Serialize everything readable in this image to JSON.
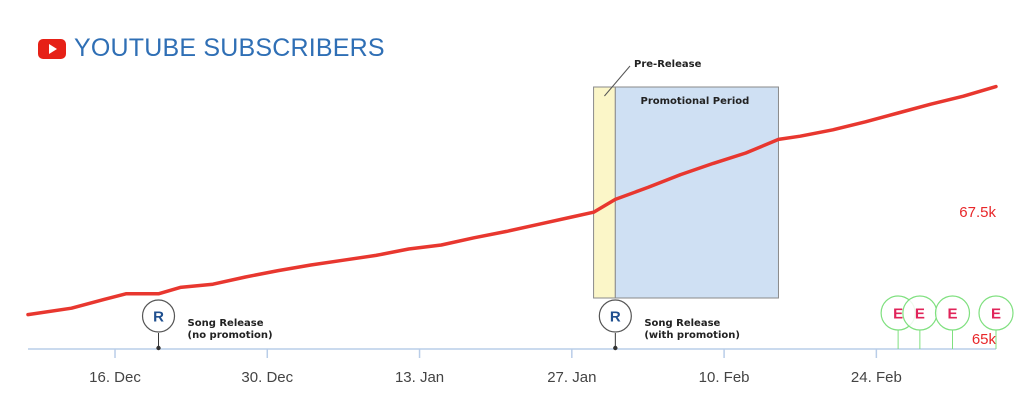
{
  "header": {
    "title": "YOUTUBE SUBSCRIBERS",
    "icon": "youtube-play-icon",
    "icon_color": "#e62117"
  },
  "colors": {
    "line": "#e8372f",
    "axis": "#b9cde8",
    "title": "#2f6fb5",
    "prerelease_fill": "#fbf6c8",
    "promo_fill": "#cfe0f3",
    "event_marker": "#7fe07f",
    "event_letter": "#e0245a",
    "release_letter": "#1f4f8f"
  },
  "chart_data": {
    "type": "line",
    "title": "YOUTUBE SUBSCRIBERS",
    "x_ticks": [
      "16. Dec",
      "30. Dec",
      "13. Jan",
      "27. Jan",
      "10. Feb",
      "24. Feb"
    ],
    "x_range": [
      "2018-12-08",
      "2019-03-07"
    ],
    "y_labels": [
      "67.5k",
      "65k"
    ],
    "ylim": [
      65000,
      68500
    ],
    "grid": false,
    "series": [
      {
        "values": [
          {
            "x": "2018-12-08",
            "y": 65380
          },
          {
            "x": "2018-12-12",
            "y": 65460
          },
          {
            "x": "2018-12-15",
            "y": 65570
          },
          {
            "x": "2018-12-17",
            "y": 65640
          },
          {
            "x": "2018-12-20",
            "y": 65640
          },
          {
            "x": "2018-12-22",
            "y": 65720
          },
          {
            "x": "2018-12-25",
            "y": 65760
          },
          {
            "x": "2018-12-28",
            "y": 65850
          },
          {
            "x": "2018-12-31",
            "y": 65930
          },
          {
            "x": "2019-01-03",
            "y": 66000
          },
          {
            "x": "2019-01-06",
            "y": 66060
          },
          {
            "x": "2019-01-09",
            "y": 66120
          },
          {
            "x": "2019-01-12",
            "y": 66200
          },
          {
            "x": "2019-01-15",
            "y": 66250
          },
          {
            "x": "2019-01-18",
            "y": 66340
          },
          {
            "x": "2019-01-21",
            "y": 66420
          },
          {
            "x": "2019-01-24",
            "y": 66510
          },
          {
            "x": "2019-01-27",
            "y": 66600
          },
          {
            "x": "2019-01-29",
            "y": 66660
          },
          {
            "x": "2019-01-31",
            "y": 66820
          },
          {
            "x": "2019-02-03",
            "y": 66970
          },
          {
            "x": "2019-02-06",
            "y": 67130
          },
          {
            "x": "2019-02-09",
            "y": 67270
          },
          {
            "x": "2019-02-12",
            "y": 67400
          },
          {
            "x": "2019-02-15",
            "y": 67570
          },
          {
            "x": "2019-02-17",
            "y": 67610
          },
          {
            "x": "2019-02-20",
            "y": 67690
          },
          {
            "x": "2019-02-23",
            "y": 67790
          },
          {
            "x": "2019-02-26",
            "y": 67900
          },
          {
            "x": "2019-03-01",
            "y": 68010
          },
          {
            "x": "2019-03-04",
            "y": 68110
          },
          {
            "x": "2019-03-07",
            "y": 68230
          }
        ]
      }
    ],
    "periods": [
      {
        "label": "Pre-Release",
        "start": "2019-01-29",
        "end": "2019-01-31"
      },
      {
        "label": "Promotional Period",
        "start": "2019-01-31",
        "end": "2019-02-15"
      }
    ],
    "annotations": [
      {
        "marker": "R",
        "line1": "Song Release",
        "line2": "(no promotion)",
        "date": "2018-12-20"
      },
      {
        "marker": "R",
        "line1": "Song Release",
        "line2": "(with promotion)",
        "date": "2019-01-31"
      }
    ],
    "event_markers": [
      {
        "marker": "E",
        "date": "2019-02-26"
      },
      {
        "marker": "E",
        "date": "2019-02-28"
      },
      {
        "marker": "E",
        "date": "2019-03-03"
      },
      {
        "marker": "E",
        "date": "2019-03-07"
      }
    ]
  }
}
